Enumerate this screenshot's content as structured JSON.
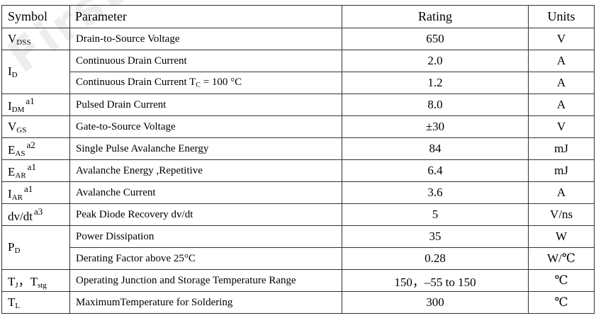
{
  "watermark": "First Se",
  "headers": {
    "symbol": "Symbol",
    "parameter": "Parameter",
    "rating": "Rating",
    "units": "Units"
  },
  "rows": [
    {
      "sym": "V",
      "sub": "DSS",
      "sup": "",
      "param": "Drain-to-Source Voltage",
      "param_sub": "",
      "param_tail": "",
      "rating": "650",
      "units": "V"
    },
    {
      "sym": "I",
      "sub": "D",
      "sup": "",
      "param": "Continuous Drain Current",
      "param_sub": "",
      "param_tail": "",
      "rating": "2.0",
      "units": "A"
    },
    {
      "sym": "",
      "sub": "",
      "sup": "",
      "param": "Continuous Drain Current T",
      "param_sub": "C",
      "param_tail": " = 100 °C",
      "rating": "1.2",
      "units": "A"
    },
    {
      "sym": "I",
      "sub": "DM",
      "sup": "a1",
      "param": "Pulsed Drain Current",
      "param_sub": "",
      "param_tail": "",
      "rating": "8.0",
      "units": "A"
    },
    {
      "sym": "V",
      "sub": "GS",
      "sup": "",
      "param": "Gate-to-Source Voltage",
      "param_sub": "",
      "param_tail": "",
      "rating": "±30",
      "units": "V"
    },
    {
      "sym": "E",
      "sub": "AS",
      "sup": "a2",
      "param": "Single Pulse Avalanche Energy",
      "param_sub": "",
      "param_tail": "",
      "rating": "84",
      "units": "mJ"
    },
    {
      "sym": "E",
      "sub": "AR",
      "sup": "a1",
      "param": "Avalanche Energy ,Repetitive",
      "param_sub": "",
      "param_tail": "",
      "rating": "6.4",
      "units": "mJ"
    },
    {
      "sym": "I",
      "sub": "AR",
      "sup": "a1",
      "param": "Avalanche Current",
      "param_sub": "",
      "param_tail": "",
      "rating": "3.6",
      "units": "A"
    },
    {
      "sym": "dv/dt",
      "sub": "",
      "sup": "a3",
      "param": "Peak Diode Recovery dv/dt",
      "param_sub": "",
      "param_tail": "",
      "rating": "5",
      "units": "V/ns"
    },
    {
      "sym": "P",
      "sub": "D",
      "sup": "",
      "param": "Power Dissipation",
      "param_sub": "",
      "param_tail": "",
      "rating": "35",
      "units": "W"
    },
    {
      "sym": "",
      "sub": "",
      "sup": "",
      "param": "Derating Factor above 25°C",
      "param_sub": "",
      "param_tail": "",
      "rating": "0.28",
      "units": "W/℃"
    },
    {
      "sym": "T",
      "sub": "J",
      "sym2": "，T",
      "sub2": "stg",
      "sup": "",
      "param": "Operating Junction and Storage Temperature Range",
      "param_sub": "",
      "param_tail": "",
      "rating": "150，–55 to 150",
      "units": "℃"
    },
    {
      "sym": "T",
      "sub": "L",
      "sup": "",
      "param": "MaximumTemperature for Soldering",
      "param_sub": "",
      "param_tail": "",
      "rating": "300",
      "units": "℃"
    }
  ]
}
